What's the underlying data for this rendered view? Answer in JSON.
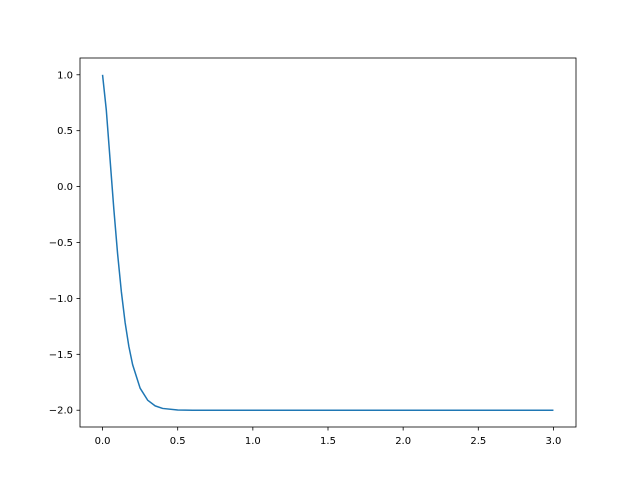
{
  "chart_data": {
    "type": "line",
    "title": "",
    "xlabel": "",
    "ylabel": "",
    "xlim": [
      -0.15,
      3.15
    ],
    "ylim": [
      -2.15,
      1.15
    ],
    "grid": false,
    "x_ticks": [
      0.0,
      0.5,
      1.0,
      1.5,
      2.0,
      2.5,
      3.0
    ],
    "x_tick_labels": [
      "0.0",
      "0.5",
      "1.0",
      "1.5",
      "2.0",
      "2.5",
      "3.0"
    ],
    "y_ticks": [
      1.0,
      0.5,
      0.0,
      -0.5,
      -1.0,
      -1.5,
      -2.0
    ],
    "y_tick_labels": [
      "1.0",
      "0.5",
      "0.0",
      "−0.5",
      "−1.0",
      "−1.5",
      "−2.0"
    ],
    "series": [
      {
        "color": "#1f77b4",
        "x": [
          0,
          0.025,
          0.05,
          0.075,
          0.1,
          0.125,
          0.15,
          0.175,
          0.2,
          0.25,
          0.3,
          0.35,
          0.4,
          0.5,
          0.6,
          1.0,
          1.5,
          2.0,
          2.5,
          3.0
        ],
        "y": [
          1.0,
          0.685,
          0.243,
          -0.2,
          -0.599,
          -0.938,
          -1.214,
          -1.429,
          -1.592,
          -1.803,
          -1.91,
          -1.961,
          -1.984,
          -1.998,
          -2.0,
          -2.0,
          -2.0,
          -2.0,
          -2.0,
          -2.0
        ]
      }
    ]
  }
}
